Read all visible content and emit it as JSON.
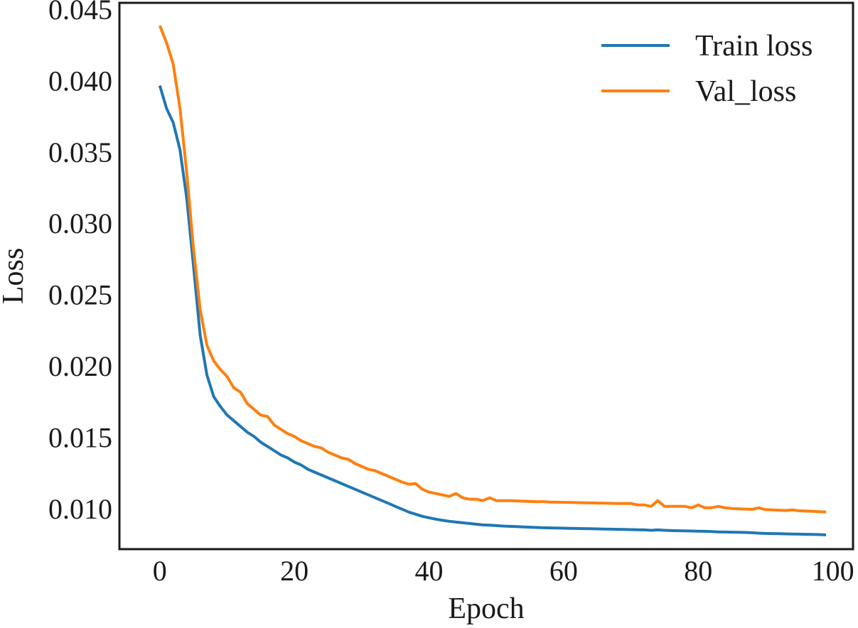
{
  "chart_data": {
    "type": "line",
    "xlabel": "Epoch",
    "ylabel": "Loss",
    "xlim": [
      -6,
      103
    ],
    "ylim": [
      0.0072,
      0.0455
    ],
    "xticks": [
      0,
      20,
      40,
      60,
      80,
      100
    ],
    "xtick_labels": [
      "0",
      "20",
      "40",
      "60",
      "80",
      "100"
    ],
    "yticks": [
      0.01,
      0.015,
      0.02,
      0.025,
      0.03,
      0.035,
      0.04,
      0.045
    ],
    "ytick_labels": [
      "0.010",
      "0.015",
      "0.020",
      "0.025",
      "0.030",
      "0.035",
      "0.040",
      "0.045"
    ],
    "grid": false,
    "legend_position": "top-right",
    "series": [
      {
        "name": "Train loss",
        "color": "#1f77b4",
        "x": [
          0,
          1,
          2,
          3,
          4,
          5,
          6,
          7,
          8,
          9,
          10,
          11,
          12,
          13,
          14,
          15,
          16,
          17,
          18,
          19,
          20,
          21,
          22,
          23,
          24,
          25,
          26,
          27,
          28,
          29,
          30,
          31,
          32,
          33,
          34,
          35,
          36,
          37,
          38,
          39,
          40,
          41,
          42,
          43,
          44,
          45,
          46,
          47,
          48,
          49,
          50,
          51,
          52,
          53,
          54,
          55,
          56,
          57,
          58,
          59,
          60,
          61,
          62,
          63,
          64,
          65,
          66,
          67,
          68,
          69,
          70,
          71,
          72,
          73,
          74,
          75,
          76,
          77,
          78,
          79,
          80,
          81,
          82,
          83,
          84,
          85,
          86,
          87,
          88,
          89,
          90,
          91,
          92,
          93,
          94,
          95,
          96,
          97,
          98,
          99
        ],
        "values": [
          0.0397,
          0.0381,
          0.0371,
          0.0352,
          0.0318,
          0.0271,
          0.0222,
          0.0194,
          0.0179,
          0.0172,
          0.0166,
          0.0162,
          0.0158,
          0.0154,
          0.0151,
          0.0147,
          0.0144,
          0.0141,
          0.0138,
          0.0136,
          0.0133,
          0.0131,
          0.0128,
          0.0126,
          0.0124,
          0.0122,
          0.012,
          0.0118,
          0.0116,
          0.0114,
          0.0112,
          0.011,
          0.0108,
          0.0106,
          0.0104,
          0.0102,
          0.01,
          0.0098,
          0.00965,
          0.0095,
          0.0094,
          0.0093,
          0.00922,
          0.00915,
          0.0091,
          0.00905,
          0.009,
          0.00895,
          0.0089,
          0.00888,
          0.00885,
          0.00882,
          0.0088,
          0.00878,
          0.00876,
          0.00874,
          0.00872,
          0.0087,
          0.00869,
          0.00868,
          0.00867,
          0.00866,
          0.00865,
          0.00864,
          0.00863,
          0.00862,
          0.00861,
          0.0086,
          0.00859,
          0.00858,
          0.00857,
          0.00856,
          0.00855,
          0.00852,
          0.00855,
          0.00852,
          0.0085,
          0.00849,
          0.00848,
          0.00847,
          0.00846,
          0.00845,
          0.00843,
          0.00841,
          0.0084,
          0.00839,
          0.00838,
          0.00837,
          0.00835,
          0.00832,
          0.0083,
          0.00829,
          0.00828,
          0.00827,
          0.00826,
          0.00825,
          0.00824,
          0.00823,
          0.00822,
          0.0082
        ]
      },
      {
        "name": "Val_loss",
        "color": "#ff7f0e",
        "x": [
          0,
          1,
          2,
          3,
          4,
          5,
          6,
          7,
          8,
          9,
          10,
          11,
          12,
          13,
          14,
          15,
          16,
          17,
          18,
          19,
          20,
          21,
          22,
          23,
          24,
          25,
          26,
          27,
          28,
          29,
          30,
          31,
          32,
          33,
          34,
          35,
          36,
          37,
          38,
          39,
          40,
          41,
          42,
          43,
          44,
          45,
          46,
          47,
          48,
          49,
          50,
          51,
          52,
          53,
          54,
          55,
          56,
          57,
          58,
          59,
          60,
          61,
          62,
          63,
          64,
          65,
          66,
          67,
          68,
          69,
          70,
          71,
          72,
          73,
          74,
          75,
          76,
          77,
          78,
          79,
          80,
          81,
          82,
          83,
          84,
          85,
          86,
          87,
          88,
          89,
          90,
          91,
          92,
          93,
          94,
          95,
          96,
          97,
          98,
          99
        ],
        "values": [
          0.0439,
          0.0427,
          0.0412,
          0.0381,
          0.0336,
          0.0283,
          0.024,
          0.0215,
          0.0204,
          0.0198,
          0.0193,
          0.0185,
          0.0182,
          0.0174,
          0.017,
          0.0166,
          0.0165,
          0.0159,
          0.0156,
          0.0153,
          0.0151,
          0.0148,
          0.0146,
          0.0144,
          0.0143,
          0.014,
          0.0138,
          0.0136,
          0.0135,
          0.0132,
          0.013,
          0.0128,
          0.0127,
          0.0125,
          0.0123,
          0.0121,
          0.0119,
          0.01175,
          0.0118,
          0.0114,
          0.0112,
          0.0111,
          0.011,
          0.0109,
          0.0111,
          0.0108,
          0.0107,
          0.0107,
          0.0106,
          0.0108,
          0.0106,
          0.0106,
          0.0106,
          0.01058,
          0.01056,
          0.01054,
          0.01052,
          0.01053,
          0.0105,
          0.01049,
          0.01048,
          0.01047,
          0.01046,
          0.01045,
          0.01044,
          0.01043,
          0.01042,
          0.01041,
          0.0104,
          0.0104,
          0.0104,
          0.0103,
          0.0103,
          0.0102,
          0.0106,
          0.0102,
          0.0102,
          0.0102,
          0.0102,
          0.0101,
          0.0103,
          0.0101,
          0.0101,
          0.0102,
          0.0101,
          0.01005,
          0.01003,
          0.01001,
          0.00999,
          0.0101,
          0.00997,
          0.00995,
          0.00993,
          0.00991,
          0.00995,
          0.00989,
          0.00987,
          0.00985,
          0.00983,
          0.0098
        ]
      }
    ]
  }
}
